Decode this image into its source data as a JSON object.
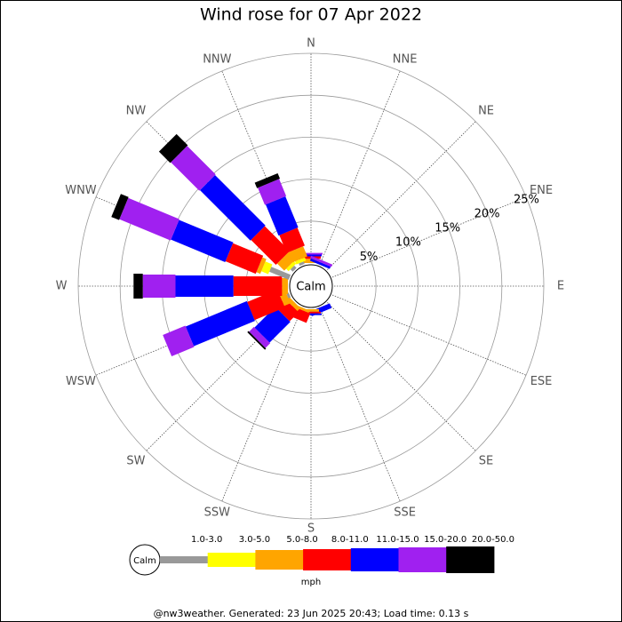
{
  "chart_data": {
    "type": "windrose",
    "title": "Wind rose for 07 Apr 2022",
    "directions": [
      "N",
      "NNE",
      "NE",
      "ENE",
      "E",
      "ESE",
      "SE",
      "SSE",
      "S",
      "SSW",
      "SW",
      "WSW",
      "W",
      "WNW",
      "NW",
      "NNW"
    ],
    "calm_label": "Calm",
    "rlim": [
      0,
      25
    ],
    "rticks": [
      {
        "value": 5,
        "label": "5%"
      },
      {
        "value": 10,
        "label": "10%"
      },
      {
        "value": 15,
        "label": "15%"
      },
      {
        "value": 20,
        "label": "20%"
      },
      {
        "value": 25,
        "label": "25%"
      }
    ],
    "series": [
      {
        "name": "1.0-3.0",
        "color": "#999999",
        "values": [
          0,
          0,
          0,
          0,
          0,
          0,
          0,
          0,
          0,
          0,
          0,
          0.3,
          0,
          2.5,
          0.4,
          0.3
        ]
      },
      {
        "name": "3.0-5.0",
        "color": "#ffff00",
        "values": [
          0,
          0,
          0,
          0,
          0,
          0,
          0,
          0,
          0,
          0,
          0,
          0,
          0,
          0.9,
          0.4,
          0.4
        ]
      },
      {
        "name": "5.0-8.0",
        "color": "#ffa500",
        "values": [
          0.5,
          0,
          0,
          0,
          0,
          0,
          0,
          0,
          0.3,
          0.3,
          0.5,
          0.8,
          0.7,
          0.5,
          1.2,
          1.3
        ]
      },
      {
        "name": "8.0-11.0",
        "color": "#ff0000",
        "values": [
          0.3,
          0,
          0,
          0,
          0,
          0,
          0,
          0,
          0.2,
          1.2,
          1.5,
          3.9,
          5.8,
          3.9,
          4.2,
          2.3
        ]
      },
      {
        "name": "11.0-15.0",
        "color": "#0000ff",
        "values": [
          0.2,
          0.3,
          0,
          0,
          0,
          0,
          0,
          0.6,
          0.2,
          0,
          3.5,
          7.9,
          6.9,
          7.0,
          8.5,
          4.0
        ]
      },
      {
        "name": "15.0-20.0",
        "color": "#a020f0",
        "values": [
          0.2,
          0.3,
          0,
          0,
          0,
          0,
          0,
          0,
          0,
          0,
          0.8,
          2.9,
          3.9,
          6.6,
          4.8,
          2.2
        ]
      },
      {
        "name": "20.0-50.0",
        "color": "#000000",
        "values": [
          0,
          0,
          0,
          0,
          0,
          0,
          0,
          0,
          0,
          0,
          0.2,
          0,
          1.1,
          1.0,
          1.9,
          0.7
        ]
      }
    ],
    "legend_unit": "mph",
    "footer": "@nw3weather. Generated: 23 Jun 2025 20:43; Load time: 0.13 s"
  }
}
